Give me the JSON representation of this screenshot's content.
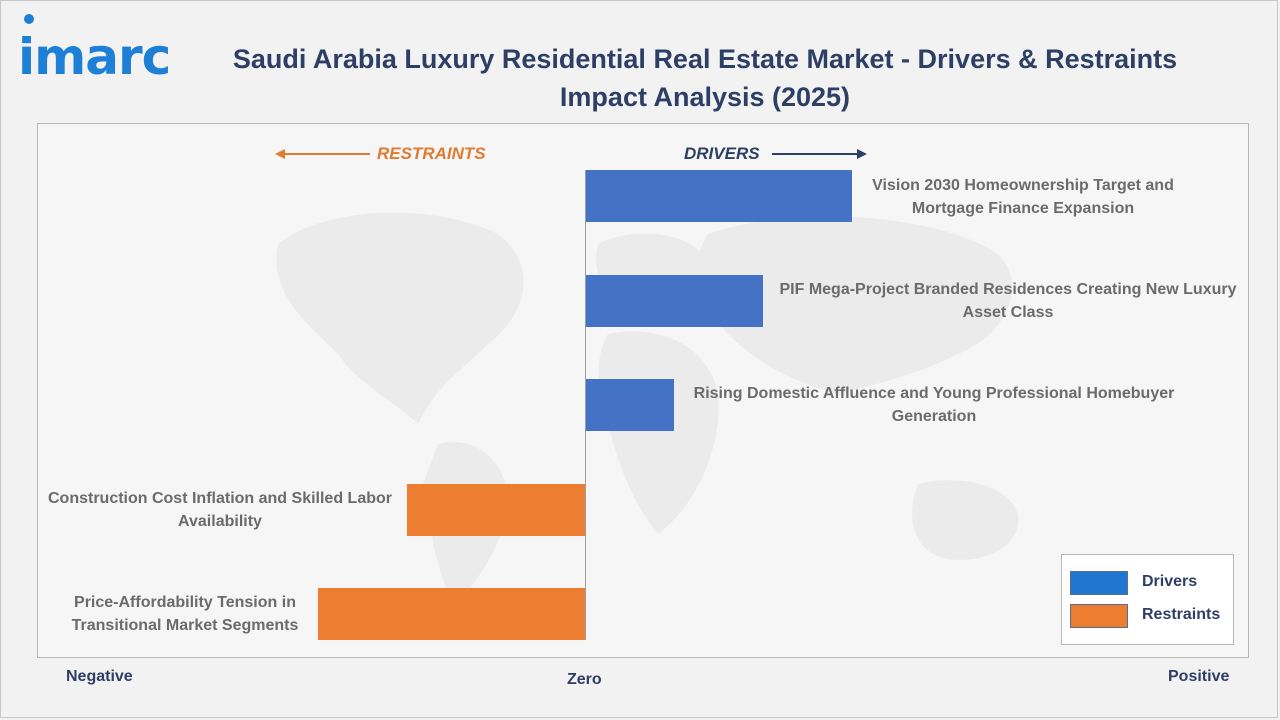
{
  "brand": {
    "logo_text": "imarc"
  },
  "colors": {
    "drivers": "#4472c4",
    "restraints": "#ed7d31",
    "title": "#2e3f66"
  },
  "chart_data": {
    "type": "bar",
    "orientation": "horizontal",
    "title": "Saudi Arabia Luxury Residential Real Estate Market - Drivers & Restraints Impact Analysis (2025)",
    "direction_labels": {
      "restraints": "RESTRAINTS",
      "drivers": "DRIVERS"
    },
    "axis_labels": {
      "negative": "Negative",
      "zero": "Zero",
      "positive": "Positive"
    },
    "categories": [
      "Vision 2030 Homeownership Target and Mortgage Finance Expansion",
      "PIF Mega-Project Branded Residences Creating New Luxury Asset Class",
      "Rising Domestic Affluence and Young Professional Homebuyer Generation",
      "Construction Cost Inflation and Skilled Labor Availability",
      "Price-Affordability Tension in Transitional Market Segments"
    ],
    "values": [
      3,
      2,
      1,
      -2,
      -3
    ],
    "series_type": [
      "Drivers",
      "Drivers",
      "Drivers",
      "Restraints",
      "Restraints"
    ],
    "legend": {
      "position": "bottom-right",
      "items": [
        "Drivers",
        "Restraints"
      ]
    },
    "grid": false
  }
}
